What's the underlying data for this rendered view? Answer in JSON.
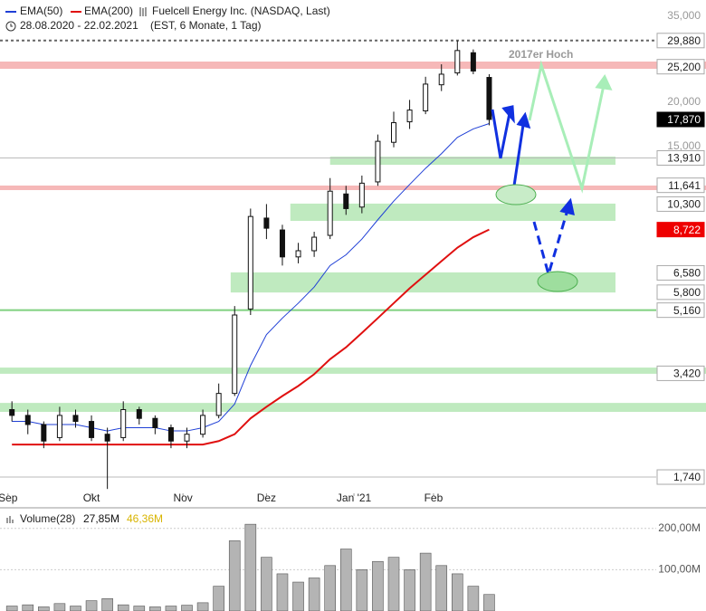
{
  "chart_data": {
    "type": "candlestick",
    "legend": [
      {
        "name": "EMA(50)",
        "color": "#1f3fd6"
      },
      {
        "name": "EMA(200)",
        "color": "#e01010"
      }
    ],
    "title": "Fuelcell Energy Inc. (NASDAQ, Last)",
    "date_range": "28.08.2020 - 22.02.2021",
    "settings": "(EST, 6 Monate, 1 Tag)",
    "log_scale": true,
    "x": [
      2,
      6,
      10,
      14,
      18,
      22,
      26,
      30,
      34,
      38,
      42,
      46,
      50,
      54,
      58,
      62,
      66,
      70,
      74,
      78,
      82,
      86,
      90,
      94,
      98,
      102,
      106,
      110,
      114,
      118,
      122
    ],
    "xlim": [
      -1,
      164
    ],
    "xticks": [
      {
        "value": 1,
        "label": "Sep"
      },
      {
        "value": 22,
        "label": "Okt"
      },
      {
        "value": 45,
        "label": "Nov"
      },
      {
        "value": 66,
        "label": "Dez"
      },
      {
        "value": 88,
        "label": "Jan '21"
      },
      {
        "value": 108,
        "label": "Feb"
      }
    ],
    "ylim": [
      1.565,
      37.12
    ],
    "yticks": [
      {
        "value": 35,
        "label": "35,000"
      },
      {
        "value": 20,
        "label": "20,000"
      },
      {
        "value": 15,
        "label": "15,000"
      }
    ],
    "open": [
      2.7,
      2.6,
      2.45,
      2.25,
      2.6,
      2.5,
      2.3,
      2.25,
      2.7,
      2.55,
      2.4,
      2.2,
      2.3,
      2.6,
      3.0,
      5.2,
      9.4,
      8.7,
      7.3,
      7.6,
      8.4,
      11.0,
      10.1,
      11.9,
      15.4,
      17.6,
      18.9,
      22.4,
      24.2,
      27.6,
      23.5
    ],
    "high": [
      2.85,
      2.7,
      2.5,
      2.75,
      2.7,
      2.6,
      2.4,
      2.85,
      2.75,
      2.6,
      2.45,
      2.4,
      2.7,
      3.2,
      5.3,
      10.0,
      10.3,
      9.0,
      8.0,
      8.6,
      12.2,
      11.6,
      12.4,
      16.2,
      18.8,
      20.3,
      23.6,
      25.6,
      29.88,
      28.2,
      24.0
    ],
    "low": [
      2.5,
      2.3,
      2.1,
      2.2,
      2.4,
      2.2,
      1.61,
      2.2,
      2.45,
      2.3,
      2.1,
      2.1,
      2.25,
      2.55,
      2.95,
      5.0,
      8.2,
      6.9,
      7.0,
      7.3,
      8.2,
      9.6,
      9.7,
      11.6,
      14.9,
      16.8,
      18.5,
      21.5,
      23.8,
      24.0,
      17.2
    ],
    "close": [
      2.6,
      2.45,
      2.2,
      2.6,
      2.5,
      2.25,
      2.2,
      2.7,
      2.55,
      2.4,
      2.2,
      2.3,
      2.6,
      3.0,
      5.0,
      9.5,
      8.8,
      7.3,
      7.6,
      8.3,
      11.2,
      10.0,
      11.8,
      15.5,
      17.5,
      19.0,
      22.5,
      24.0,
      28.0,
      24.5,
      17.87
    ],
    "ema50": [
      2.5,
      2.5,
      2.45,
      2.45,
      2.45,
      2.4,
      2.35,
      2.4,
      2.4,
      2.4,
      2.35,
      2.35,
      2.4,
      2.5,
      2.8,
      3.6,
      4.4,
      4.9,
      5.4,
      6.0,
      6.9,
      7.4,
      8.2,
      9.3,
      10.5,
      11.7,
      13.0,
      14.3,
      15.9,
      16.8,
      17.4
    ],
    "ema200": [
      2.15,
      2.15,
      2.15,
      2.15,
      2.15,
      2.15,
      2.15,
      2.15,
      2.15,
      2.15,
      2.15,
      2.15,
      2.15,
      2.2,
      2.3,
      2.55,
      2.75,
      2.95,
      3.15,
      3.4,
      3.75,
      4.05,
      4.45,
      4.9,
      5.4,
      5.95,
      6.5,
      7.1,
      7.75,
      8.3,
      8.722
    ],
    "zones": [
      {
        "from": 24.86,
        "to": 26.06,
        "start": -1,
        "color": "#f6b8b8"
      },
      {
        "from": 11.28,
        "to": 11.62,
        "start": -1,
        "color": "#f6b8b8"
      },
      {
        "from": 13.3,
        "to": 14.03,
        "start": 82,
        "color": "#bfeabf"
      },
      {
        "from": 9.23,
        "to": 10.33,
        "start": 72,
        "color": "#bfeabf"
      },
      {
        "from": 5.79,
        "to": 6.6,
        "start": 57,
        "color": "#bfeabf"
      },
      {
        "from": 3.41,
        "to": 3.55,
        "start": -1,
        "color": "#bfeabf"
      },
      {
        "from": 2.66,
        "to": 2.82,
        "start": -1,
        "color": "#bfeabf"
      }
    ],
    "lines": [
      {
        "value": 29.88,
        "style": "dotted"
      },
      {
        "value": 13.91,
        "style": "thin"
      },
      {
        "value": 5.16,
        "style": "green"
      },
      {
        "value": 1.74,
        "style": "thin"
      }
    ],
    "price_labels": [
      {
        "value": 29.88,
        "label": "29,880",
        "style": "box"
      },
      {
        "value": 25.2,
        "label": "25,200",
        "style": "box"
      },
      {
        "value": 17.87,
        "label": "17,870",
        "style": "dark"
      },
      {
        "value": 13.91,
        "label": "13,910",
        "style": "box"
      },
      {
        "value": 11.641,
        "label": "11,641",
        "style": "box"
      },
      {
        "value": 10.3,
        "label": "10,300",
        "style": "box"
      },
      {
        "value": 8.722,
        "label": "8,722",
        "style": "red"
      },
      {
        "value": 6.58,
        "label": "6,580",
        "style": "box"
      },
      {
        "value": 5.8,
        "label": "5,800",
        "style": "box"
      },
      {
        "value": 5.16,
        "label": "5,160",
        "style": "box"
      },
      {
        "value": 3.42,
        "label": "3,420",
        "style": "box"
      },
      {
        "value": 1.74,
        "label": "1,740",
        "style": "box"
      }
    ],
    "annotation": "2017er Hoch",
    "volume": {
      "name": "Volume(28)",
      "avg": "27,85M",
      "avg_color": "#111",
      "avg2": "46,36M",
      "avg2_color": "#d8b400",
      "values": [
        12000000,
        15000000,
        10000000,
        18000000,
        12000000,
        25000000,
        30000000,
        15000000,
        12000000,
        10000000,
        12000000,
        14000000,
        20000000,
        60000000,
        170000000,
        210000000,
        130000000,
        90000000,
        70000000,
        80000000,
        110000000,
        150000000,
        100000000,
        120000000,
        130000000,
        100000000,
        140000000,
        110000000,
        90000000,
        60000000,
        40000000
      ],
      "ylim": [
        0,
        241000000
      ],
      "yticks": [
        {
          "value": 200000000,
          "label": "200,00M"
        },
        {
          "value": 100000000,
          "label": "100,00M"
        }
      ],
      "color": "#b4b4b4"
    }
  }
}
